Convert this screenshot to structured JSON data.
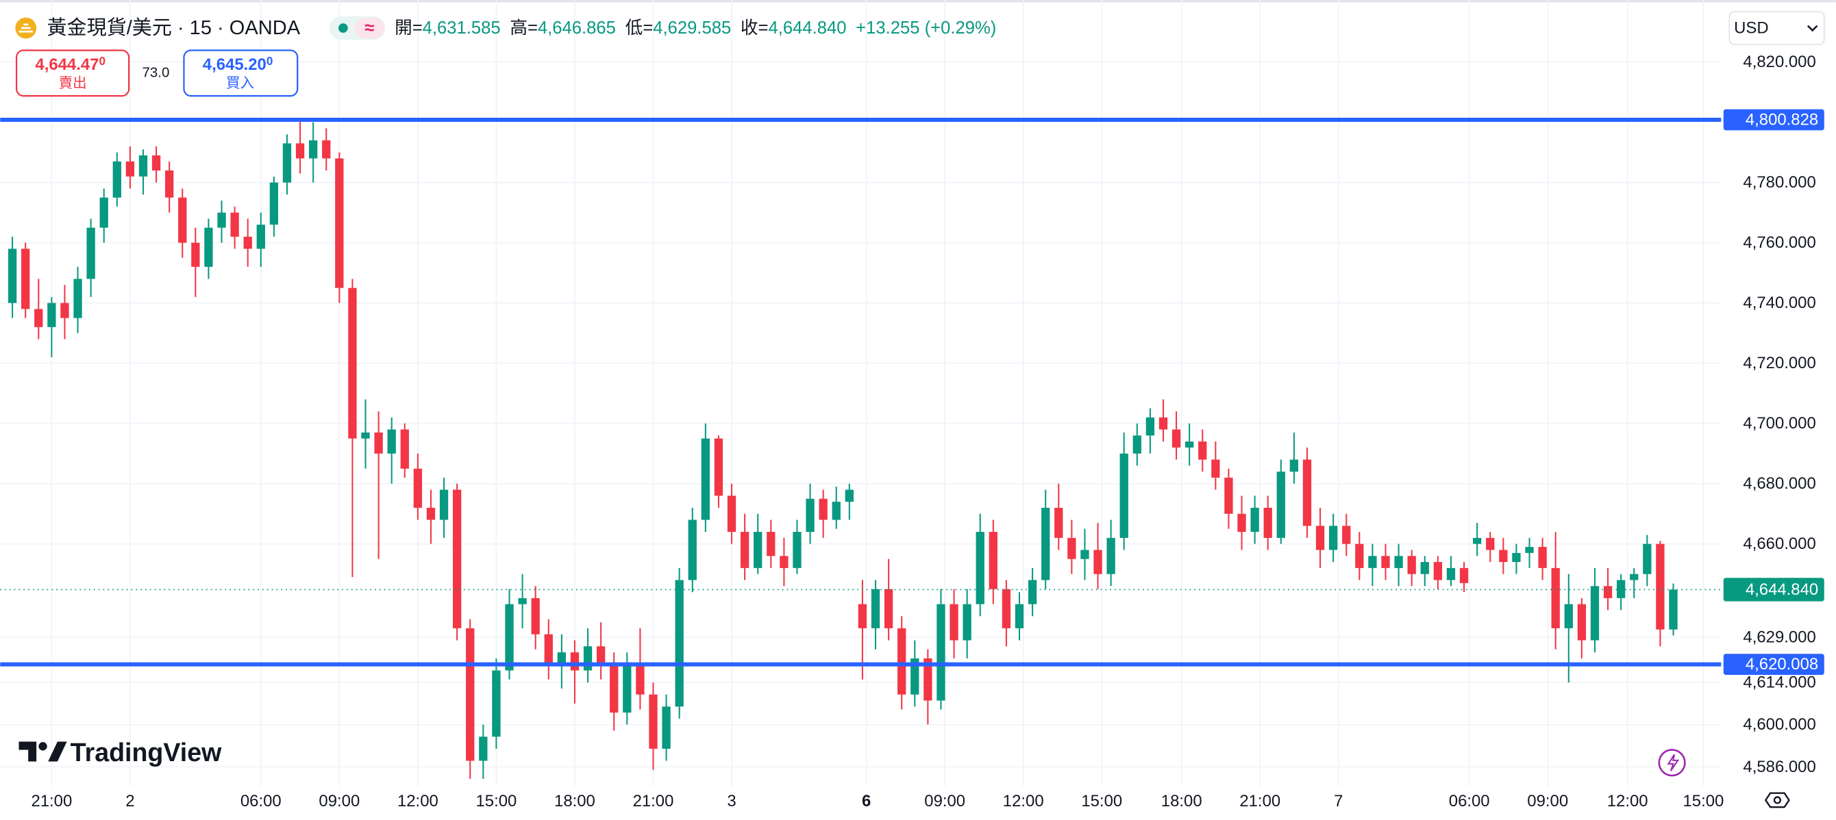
{
  "header": {
    "title": "黃金現貨/美元 · 15 · OANDA",
    "indicator": "≈",
    "ohlc": [
      {
        "label": "開=",
        "value": "4,631.585"
      },
      {
        "label": "高=",
        "value": "4,646.865"
      },
      {
        "label": "低=",
        "value": "4,629.585"
      },
      {
        "label": "收=",
        "value": "4,644.840"
      }
    ],
    "change": "+13.255 (+0.29%)"
  },
  "trade": {
    "sell": {
      "price": "4,644.47",
      "tail": "0",
      "label": "賣出"
    },
    "spread": "73.0",
    "buy": {
      "price": "4,645.20",
      "tail": "0",
      "label": "買入"
    }
  },
  "currency": "USD",
  "logo": "TradingView",
  "chart_data": {
    "type": "candlestick",
    "up_color": "#089981",
    "down_color": "#f23645",
    "grid": true,
    "candles": [
      [
        4740,
        4762,
        4735,
        4758
      ],
      [
        4758,
        4760,
        4735,
        4738
      ],
      [
        4738,
        4748,
        4728,
        4732
      ],
      [
        4732,
        4742,
        4722,
        4740
      ],
      [
        4740,
        4746,
        4728,
        4735
      ],
      [
        4735,
        4752,
        4730,
        4748
      ],
      [
        4748,
        4768,
        4742,
        4765
      ],
      [
        4765,
        4778,
        4760,
        4775
      ],
      [
        4775,
        4790,
        4772,
        4787
      ],
      [
        4787,
        4792,
        4778,
        4782
      ],
      [
        4782,
        4791,
        4776,
        4789
      ],
      [
        4789,
        4792,
        4780,
        4784
      ],
      [
        4784,
        4787,
        4770,
        4775
      ],
      [
        4775,
        4778,
        4755,
        4760
      ],
      [
        4760,
        4765,
        4742,
        4752
      ],
      [
        4752,
        4768,
        4748,
        4765
      ],
      [
        4765,
        4774,
        4760,
        4770
      ],
      [
        4770,
        4772,
        4758,
        4762
      ],
      [
        4762,
        4768,
        4752,
        4758
      ],
      [
        4758,
        4770,
        4752,
        4766
      ],
      [
        4766,
        4782,
        4762,
        4780
      ],
      [
        4780,
        4796,
        4776,
        4793
      ],
      [
        4793,
        4801,
        4783,
        4788
      ],
      [
        4788,
        4800,
        4780,
        4794
      ],
      [
        4794,
        4798,
        4784,
        4788
      ],
      [
        4788,
        4790,
        4740,
        4745
      ],
      [
        4745,
        4748,
        4649,
        4695
      ],
      [
        4695,
        4708,
        4685,
        4697
      ],
      [
        4697,
        4704,
        4655,
        4690
      ],
      [
        4690,
        4702,
        4680,
        4698
      ],
      [
        4698,
        4700,
        4682,
        4685
      ],
      [
        4685,
        4690,
        4668,
        4672
      ],
      [
        4672,
        4678,
        4660,
        4668
      ],
      [
        4668,
        4682,
        4662,
        4678
      ],
      [
        4678,
        4680,
        4628,
        4632
      ],
      [
        4632,
        4635,
        4582,
        4588
      ],
      [
        4588,
        4600,
        4582,
        4596
      ],
      [
        4596,
        4622,
        4592,
        4618
      ],
      [
        4618,
        4645,
        4615,
        4640
      ],
      [
        4640,
        4650,
        4632,
        4642
      ],
      [
        4642,
        4646,
        4625,
        4630
      ],
      [
        4630,
        4635,
        4615,
        4620
      ],
      [
        4620,
        4630,
        4612,
        4624
      ],
      [
        4624,
        4628,
        4607,
        4618
      ],
      [
        4618,
        4632,
        4614,
        4626
      ],
      [
        4626,
        4634,
        4615,
        4620
      ],
      [
        4620,
        4624,
        4598,
        4604
      ],
      [
        4604,
        4624,
        4600,
        4620
      ],
      [
        4620,
        4632,
        4605,
        4610
      ],
      [
        4610,
        4614,
        4585,
        4592
      ],
      [
        4592,
        4610,
        4588,
        4606
      ],
      [
        4606,
        4652,
        4602,
        4648
      ],
      [
        4648,
        4672,
        4644,
        4668
      ],
      [
        4668,
        4700,
        4664,
        4695
      ],
      [
        4695,
        4696,
        4672,
        4676
      ],
      [
        4676,
        4680,
        4660,
        4664
      ],
      [
        4664,
        4670,
        4648,
        4652
      ],
      [
        4652,
        4670,
        4650,
        4664
      ],
      [
        4664,
        4668,
        4652,
        4656
      ],
      [
        4656,
        4662,
        4646,
        4652
      ],
      [
        4652,
        4668,
        4650,
        4664
      ],
      [
        4664,
        4680,
        4660,
        4675
      ],
      [
        4675,
        4678,
        4662,
        4668
      ],
      [
        4668,
        4679,
        4665,
        4674
      ],
      [
        4674,
        4680,
        4668,
        4678
      ],
      [
        4640,
        4648,
        4615,
        4632
      ],
      [
        4632,
        4648,
        4625,
        4645
      ],
      [
        4645,
        4655,
        4628,
        4632
      ],
      [
        4632,
        4636,
        4605,
        4610
      ],
      [
        4610,
        4628,
        4606,
        4622
      ],
      [
        4622,
        4625,
        4600,
        4608
      ],
      [
        4608,
        4645,
        4605,
        4640
      ],
      [
        4640,
        4645,
        4622,
        4628
      ],
      [
        4628,
        4645,
        4622,
        4640
      ],
      [
        4640,
        4670,
        4636,
        4664
      ],
      [
        4664,
        4668,
        4640,
        4645
      ],
      [
        4645,
        4648,
        4626,
        4632
      ],
      [
        4632,
        4644,
        4628,
        4640
      ],
      [
        4640,
        4652,
        4636,
        4648
      ],
      [
        4648,
        4678,
        4645,
        4672
      ],
      [
        4672,
        4680,
        4658,
        4662
      ],
      [
        4662,
        4668,
        4650,
        4655
      ],
      [
        4655,
        4665,
        4648,
        4658
      ],
      [
        4658,
        4667,
        4645,
        4650
      ],
      [
        4650,
        4668,
        4646,
        4662
      ],
      [
        4662,
        4697,
        4658,
        4690
      ],
      [
        4690,
        4700,
        4686,
        4696
      ],
      [
        4696,
        4705,
        4690,
        4702
      ],
      [
        4702,
        4708,
        4694,
        4698
      ],
      [
        4698,
        4704,
        4688,
        4692
      ],
      [
        4692,
        4700,
        4686,
        4694
      ],
      [
        4694,
        4698,
        4684,
        4688
      ],
      [
        4688,
        4694,
        4678,
        4682
      ],
      [
        4682,
        4685,
        4665,
        4670
      ],
      [
        4670,
        4676,
        4658,
        4664
      ],
      [
        4664,
        4676,
        4660,
        4672
      ],
      [
        4672,
        4676,
        4658,
        4662
      ],
      [
        4662,
        4688,
        4660,
        4684
      ],
      [
        4684,
        4697,
        4680,
        4688
      ],
      [
        4688,
        4692,
        4662,
        4666
      ],
      [
        4666,
        4672,
        4652,
        4658
      ],
      [
        4658,
        4670,
        4654,
        4666
      ],
      [
        4666,
        4670,
        4656,
        4660
      ],
      [
        4660,
        4664,
        4648,
        4652
      ],
      [
        4652,
        4660,
        4646,
        4656
      ],
      [
        4656,
        4660,
        4648,
        4652
      ],
      [
        4652,
        4660,
        4646,
        4656
      ],
      [
        4656,
        4658,
        4646,
        4650
      ],
      [
        4650,
        4656,
        4646,
        4654
      ],
      [
        4654,
        4656,
        4645,
        4648
      ],
      [
        4648,
        4656,
        4646,
        4652
      ],
      [
        4652,
        4654,
        4644,
        4647
      ],
      [
        4660,
        4667,
        4656,
        4662
      ],
      [
        4662,
        4664,
        4654,
        4658
      ],
      [
        4658,
        4662,
        4650,
        4654
      ],
      [
        4654,
        4660,
        4650,
        4657
      ],
      [
        4657,
        4662,
        4652,
        4659
      ],
      [
        4659,
        4662,
        4648,
        4652
      ],
      [
        4652,
        4664,
        4625,
        4632
      ],
      [
        4632,
        4650,
        4614,
        4640
      ],
      [
        4640,
        4642,
        4622,
        4628
      ],
      [
        4628,
        4652,
        4624,
        4646
      ],
      [
        4646,
        4652,
        4638,
        4642
      ],
      [
        4642,
        4650,
        4638,
        4648
      ],
      [
        4648,
        4652,
        4642,
        4650
      ],
      [
        4650,
        4663,
        4646,
        4660
      ],
      [
        4660,
        4661,
        4626,
        4631.6
      ],
      [
        4631.585,
        4646.865,
        4629.585,
        4644.84
      ]
    ],
    "ylim": [
      4579.6,
      4840.6
    ],
    "yticks": [
      {
        "value": 4820,
        "label": "4,820.000"
      },
      {
        "value": 4780,
        "label": "4,780.000"
      },
      {
        "value": 4760,
        "label": "4,760.000"
      },
      {
        "value": 4740,
        "label": "4,740.000"
      },
      {
        "value": 4720,
        "label": "4,720.000"
      },
      {
        "value": 4700,
        "label": "4,700.000"
      },
      {
        "value": 4680,
        "label": "4,680.000"
      },
      {
        "value": 4660,
        "label": "4,660.000"
      },
      {
        "value": 4629,
        "label": "4,629.000"
      },
      {
        "value": 4614,
        "label": "4,614.000"
      },
      {
        "value": 4600,
        "label": "4,600.000"
      },
      {
        "value": 4586,
        "label": "4,586.000"
      }
    ],
    "xlim": [
      -0.94,
      130.66
    ],
    "xticks": [
      {
        "value": 3,
        "label": "21:00"
      },
      {
        "value": 9,
        "label": "2"
      },
      {
        "value": 19,
        "label": "06:00"
      },
      {
        "value": 25,
        "label": "09:00"
      },
      {
        "value": 31,
        "label": "12:00"
      },
      {
        "value": 37,
        "label": "15:00"
      },
      {
        "value": 43,
        "label": "18:00"
      },
      {
        "value": 49,
        "label": "21:00"
      },
      {
        "value": 55,
        "label": "3"
      },
      {
        "value": 65.3,
        "label": "6",
        "bold": true
      },
      {
        "value": 71.3,
        "label": "09:00"
      },
      {
        "value": 77.3,
        "label": "12:00"
      },
      {
        "value": 83.3,
        "label": "15:00"
      },
      {
        "value": 89.4,
        "label": "18:00"
      },
      {
        "value": 95.4,
        "label": "21:00"
      },
      {
        "value": 101.4,
        "label": "7"
      },
      {
        "value": 111.4,
        "label": "06:00"
      },
      {
        "value": 117.4,
        "label": "09:00"
      },
      {
        "value": 123.5,
        "label": "12:00"
      },
      {
        "value": 129.3,
        "label": "15:00"
      }
    ],
    "hlines": [
      {
        "value": 4800.828,
        "label": "4,800.828",
        "color": "#2962ff"
      },
      {
        "value": 4620.008,
        "label": "4,620.008",
        "color": "#2962ff"
      }
    ],
    "last_price": {
      "value": 4644.84,
      "label": "4,644.840",
      "color": "#089981"
    }
  }
}
